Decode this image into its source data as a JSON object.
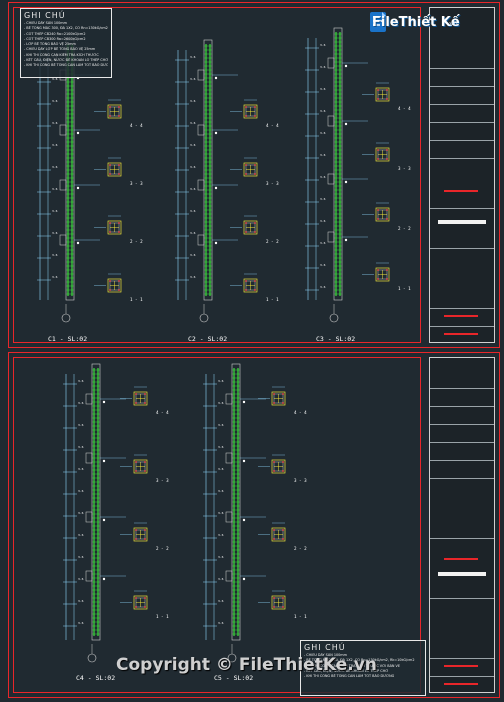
{
  "logo": {
    "name": "FileThiết Kế",
    "accent": "Kế",
    "domain": ".vn"
  },
  "watermark": "Copyright © FileThietKe.vn",
  "notes_top": {
    "title": "GHI CHÚ",
    "lines": [
      "- CHIỀU DÀY SÀN 100mm",
      "- BÊ TÔNG MÁC 300, ĐÁ 1X2, CỐ Rn=130kG/cm2, Rk=10kG/cm2",
      "- CỐT THÉP CB240 Ra=2100kG/cm2",
      "- CỐT THÉP CB300 Ra=2600kG/cm2",
      "- LỚP BÊ TÔNG BẢO VỆ 25mm",
      "- CHIỀU DÀY LỚP BÊ TÔNG BẢO VỆ 25mm",
      "- KHI THI CÔNG CẦN KIỂM TRA KÍCH THƯỚC",
      "- KẾT CẤU, ĐIỆN, NƯỚC ĐỂ KHOAN LỖ THÉP CHỜ",
      "- KHI THI CÔNG BÊ TÔNG CẦN LÀM TỐT BẢO DƯỠNG"
    ]
  },
  "notes_bottom": {
    "title": "GHI CHÚ",
    "lines": [
      "- CHIỀU DÀY SÀN 100mm",
      "- BÊ TÔNG MÁC 300, ĐÁ 1X2, CỐ Rn=130kG/cm2, Rk=10kG/cm2",
      "- KHI THI CÔNG CẦN KIỂM TRA KÍCH THƯỚC VỚI BẢN VẼ",
      "- KẾT CẤU, ĐIỆN, NƯỚC ĐỂ KHOAN LỖ THÉP CHỜ",
      "- KHI THI CÔNG BÊ TÔNG CẦN LÀM TỐT BẢO DƯỠNG"
    ]
  },
  "columns_top": [
    "C1 - SL:02",
    "C2 - SL:02",
    "C3 - SL:02"
  ],
  "columns_bottom": [
    "C4 - SL:02",
    "C5 - SL:02"
  ],
  "sections": [
    "4 - 4",
    "3 - 3",
    "2 - 2",
    "1 - 1"
  ],
  "colors": {
    "background": "#202a31",
    "frame": "#e8262a",
    "rebar": "#3ddc3d",
    "section": "#f0e23a",
    "text": "#ffffff"
  }
}
